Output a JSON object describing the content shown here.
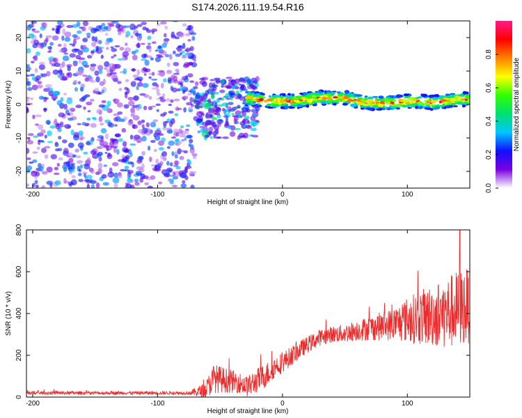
{
  "title": "S174.2026.111.19.54.R16",
  "chart_data": [
    {
      "type": "heatmap",
      "name": "spectrogram",
      "xlabel": "Height of straight line (km)",
      "ylabel": "Frequency (Hz)",
      "xlim": [
        -205,
        150
      ],
      "ylim": [
        -25,
        25
      ],
      "xticks": [
        -200,
        -100,
        0,
        100
      ],
      "xtick_labels": [
        "-200",
        "-100",
        "0",
        "100"
      ],
      "yticks": [
        -20,
        -10,
        0,
        10,
        20
      ],
      "ytick_labels": [
        "-20",
        "-10",
        "0",
        "10",
        "20"
      ],
      "colorbar": {
        "label": "Normalized spectral amplitude",
        "range": [
          0.0,
          1.0
        ],
        "ticks": [
          0.0,
          0.2,
          0.4,
          0.6,
          0.8
        ],
        "tick_labels": [
          "0.0",
          "0.2",
          "0.4",
          "0.6",
          "0.8"
        ],
        "colormap": [
          "#ffffff",
          "#7b00e0",
          "#1010ff",
          "#00c8ff",
          "#00e070",
          "#30ff00",
          "#ffff00",
          "#ff8000",
          "#ff0000",
          "#ff1a8c"
        ]
      },
      "regions": [
        {
          "desc": "noise",
          "x_range": [
            -205,
            -70
          ],
          "f_range": [
            -25,
            25
          ],
          "amplitude": [
            0.05,
            0.35
          ]
        },
        {
          "desc": "onset",
          "x_range": [
            -70,
            -20
          ],
          "f_range": [
            -10,
            8
          ],
          "amplitude": [
            0.1,
            0.45
          ]
        },
        {
          "desc": "tone",
          "x_range": [
            -30,
            150
          ],
          "f_range": [
            -1,
            3
          ],
          "amplitude": [
            0.5,
            0.95
          ]
        }
      ],
      "ridge": {
        "x": [
          -70,
          -60,
          -50,
          -40,
          -30,
          -20,
          -10,
          0,
          10,
          20,
          30,
          40,
          50,
          60,
          70,
          80,
          90,
          100,
          110,
          120,
          130,
          140,
          150
        ],
        "f": [
          3,
          4,
          3,
          2.5,
          2,
          1.5,
          1,
          1,
          1,
          1.5,
          2,
          2,
          2,
          1,
          0.5,
          0.5,
          0.5,
          1,
          1,
          0.5,
          1,
          1.5,
          1.5
        ]
      }
    },
    {
      "type": "line",
      "name": "snr",
      "xlabel": "Height of straight line (km)",
      "ylabel": "SNR (10 * v/v)",
      "xlim": [
        -205,
        150
      ],
      "ylim": [
        0,
        800
      ],
      "xticks": [
        -200,
        -100,
        0,
        100
      ],
      "xtick_labels": [
        "-200",
        "-100",
        "0",
        "100"
      ],
      "yticks": [
        0,
        200,
        400,
        600,
        800
      ],
      "ytick_labels": [
        "0",
        "200",
        "400",
        "600",
        "800"
      ],
      "color": "#ee2a2a",
      "series": [
        {
          "name": "SNR",
          "x": [
            -205,
            -190,
            -170,
            -150,
            -130,
            -110,
            -90,
            -75,
            -62,
            -55,
            -45,
            -35,
            -28,
            -20,
            -12,
            -5,
            0,
            10,
            20,
            30,
            40,
            50,
            60,
            70,
            80,
            90,
            100,
            110,
            120,
            130,
            140,
            150
          ],
          "y": [
            20,
            20,
            20,
            20,
            20,
            20,
            20,
            20,
            30,
            90,
            80,
            70,
            50,
            80,
            110,
            150,
            165,
            210,
            250,
            285,
            300,
            305,
            320,
            330,
            340,
            350,
            370,
            380,
            390,
            400,
            420,
            440
          ],
          "noise_amplitude": [
            8,
            8,
            8,
            8,
            8,
            8,
            8,
            8,
            40,
            70,
            60,
            50,
            50,
            60,
            60,
            50,
            50,
            45,
            40,
            40,
            40,
            45,
            50,
            60,
            70,
            80,
            110,
            130,
            150,
            170,
            190,
            180
          ]
        }
      ],
      "peak": {
        "x": 142,
        "y": 800
      }
    }
  ]
}
